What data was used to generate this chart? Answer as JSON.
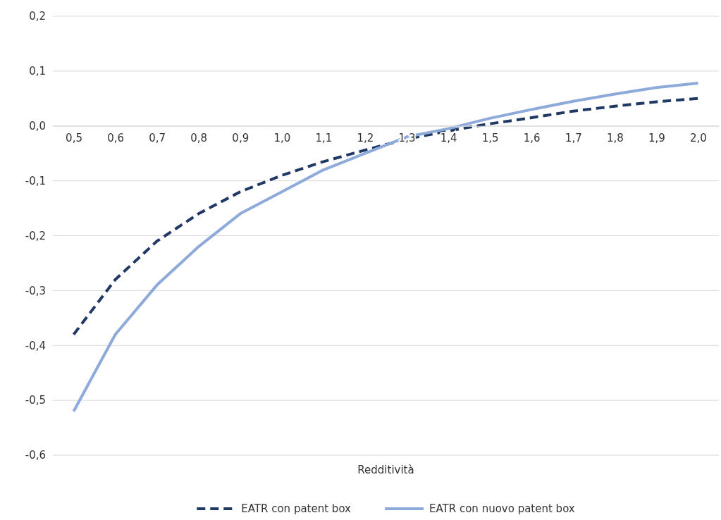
{
  "chart_data": {
    "type": "line",
    "xlabel": "Redditività",
    "categories": [
      "0,5",
      "0,6",
      "0,7",
      "0,8",
      "0,9",
      "1,0",
      "1,1",
      "1,2",
      "1,3",
      "1,4",
      "1,5",
      "1,6",
      "1,7",
      "1,8",
      "1,9",
      "2,0"
    ],
    "series": [
      {
        "name": "EATR con patent box",
        "color": "#1f3864",
        "line_style": "dashed",
        "values": [
          -0.38,
          -0.28,
          -0.21,
          -0.16,
          -0.12,
          -0.09,
          -0.065,
          -0.044,
          -0.024,
          -0.009,
          0.004,
          0.015,
          0.027,
          0.036,
          0.044,
          0.05
        ]
      },
      {
        "name": "EATR con nuovo patent box",
        "color": "#8eaadb",
        "line_style": "solid",
        "values": [
          -0.52,
          -0.38,
          -0.29,
          -0.22,
          -0.16,
          -0.12,
          -0.08,
          -0.05,
          -0.02,
          -0.005,
          0.014,
          0.03,
          0.045,
          0.058,
          0.07,
          0.078
        ]
      }
    ],
    "ylim": [
      -0.6,
      0.2
    ],
    "yticks": [
      {
        "value": -0.6,
        "label": "-0,6"
      },
      {
        "value": -0.5,
        "label": "-0,5"
      },
      {
        "value": -0.4,
        "label": "-0,4"
      },
      {
        "value": -0.3,
        "label": "-0,3"
      },
      {
        "value": -0.2,
        "label": "-0,2"
      },
      {
        "value": -0.1,
        "label": "-0,1"
      },
      {
        "value": 0,
        "label": "0,0"
      },
      {
        "value": 0.1,
        "label": "0,1"
      },
      {
        "value": 0.2,
        "label": "0,2"
      }
    ],
    "grid": "y",
    "legend": "bottom",
    "marker": "none"
  }
}
